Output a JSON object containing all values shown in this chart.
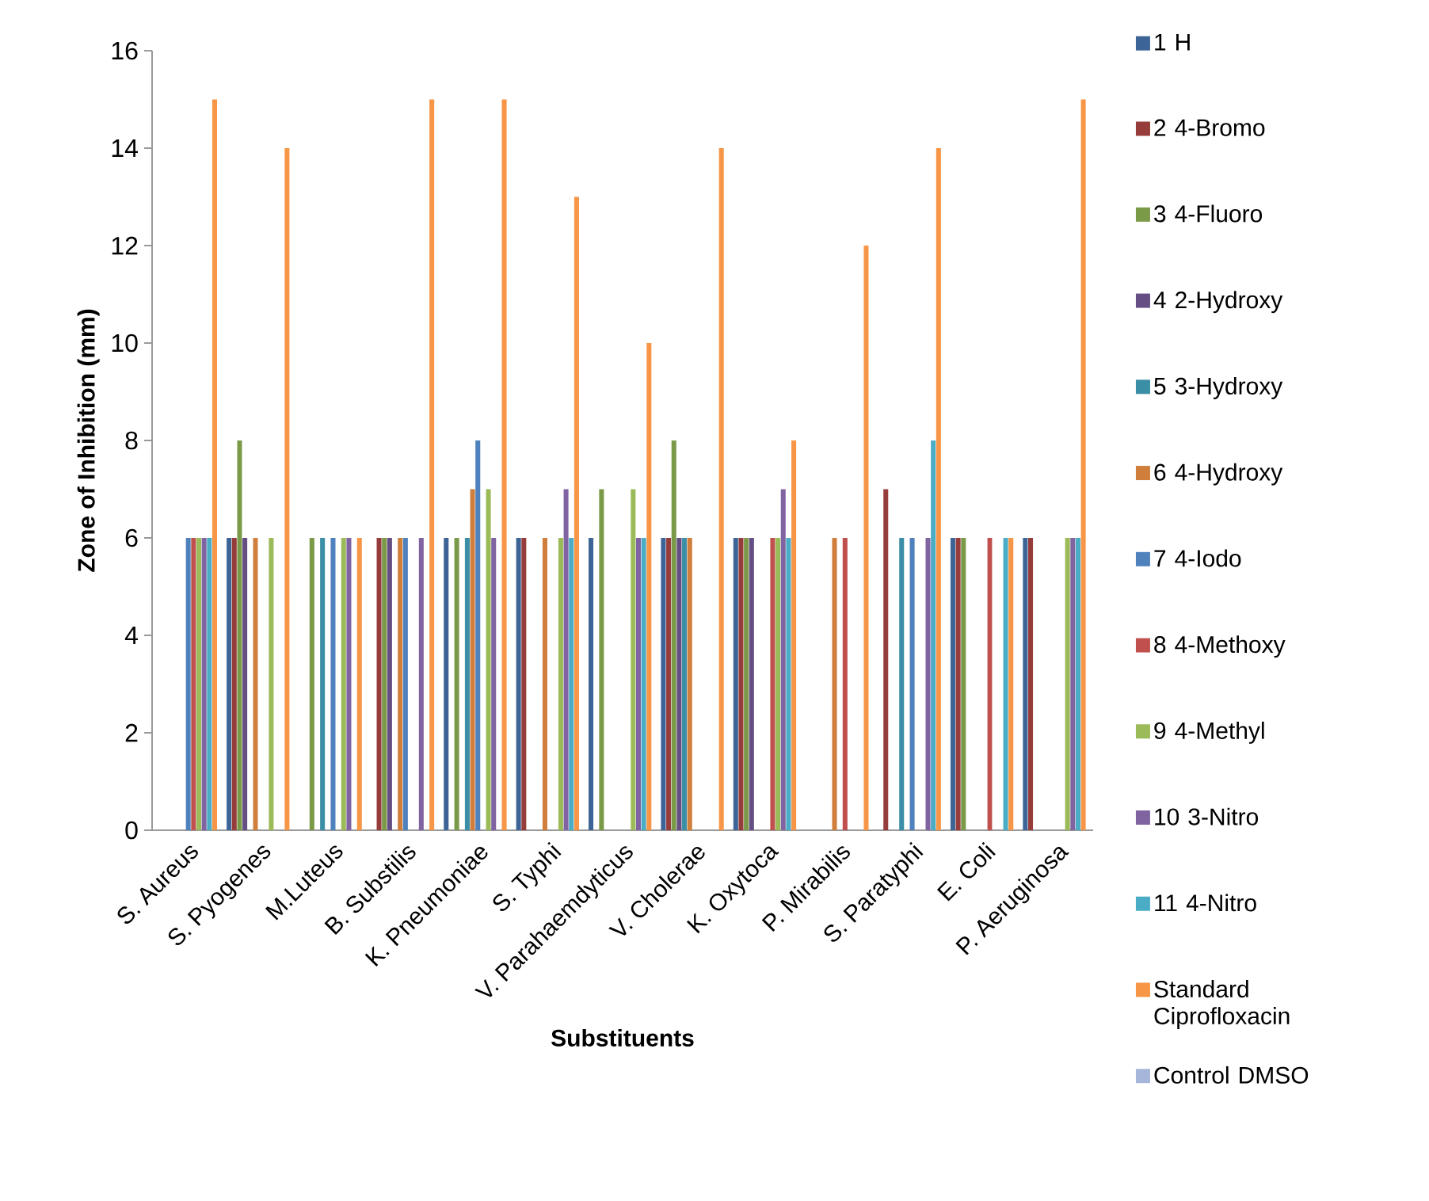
{
  "chart_data": {
    "type": "bar",
    "xlabel": "Substituents",
    "ylabel": "Zone of Inhibition (mm)",
    "categories": [
      "S. Aureus",
      "S. Pyogenes",
      "M.Luteus",
      "B. Substilis",
      "K. Pneumoniae",
      "S. Typhi",
      "V. Parahaemdyticus",
      "V. Cholerae",
      "K. Oxytoca",
      "P. Mirabilis",
      "S. Paratyphi",
      "E. Coli",
      "P. Aeruginosa"
    ],
    "ylim": [
      0,
      16
    ],
    "yticks": [
      0,
      2,
      4,
      6,
      8,
      10,
      12,
      14,
      16
    ],
    "grid": false,
    "legend": "right",
    "series": [
      {
        "name": "1 H",
        "color": "#3c6496",
        "values": [
          null,
          6,
          null,
          null,
          6,
          6,
          6,
          6,
          6,
          null,
          null,
          6,
          6
        ]
      },
      {
        "name": "2 4-Bromo",
        "color": "#963c3a",
        "values": [
          null,
          6,
          null,
          6,
          null,
          6,
          null,
          6,
          6,
          null,
          7,
          6,
          6
        ]
      },
      {
        "name": "3 4-Fluoro",
        "color": "#7a9a48",
        "values": [
          null,
          8,
          6,
          6,
          6,
          null,
          7,
          8,
          6,
          null,
          null,
          6,
          null
        ]
      },
      {
        "name": "4 2-Hydroxy",
        "color": "#654e84",
        "values": [
          null,
          6,
          null,
          6,
          null,
          null,
          null,
          6,
          6,
          null,
          null,
          null,
          null
        ]
      },
      {
        "name": "5 3-Hydroxy",
        "color": "#3a8ea5",
        "values": [
          null,
          null,
          6,
          null,
          6,
          null,
          null,
          6,
          null,
          null,
          6,
          null,
          null
        ]
      },
      {
        "name": "6 4-Hydroxy",
        "color": "#d07e3c",
        "values": [
          null,
          6,
          null,
          6,
          7,
          6,
          null,
          6,
          null,
          6,
          null,
          null,
          null
        ]
      },
      {
        "name": "7 4-Iodo",
        "color": "#4f81bd",
        "values": [
          6,
          null,
          6,
          6,
          8,
          null,
          null,
          null,
          null,
          null,
          6,
          null,
          null
        ]
      },
      {
        "name": "8 4-Methoxy",
        "color": "#c0504d",
        "values": [
          6,
          null,
          null,
          null,
          null,
          null,
          null,
          null,
          6,
          6,
          null,
          6,
          null
        ]
      },
      {
        "name": "9 4-Methyl",
        "color": "#9bbb59",
        "values": [
          6,
          6,
          6,
          null,
          7,
          6,
          7,
          null,
          6,
          null,
          null,
          null,
          6
        ]
      },
      {
        "name": "10 3-Nitro",
        "color": "#8064a2",
        "values": [
          6,
          null,
          6,
          6,
          6,
          7,
          6,
          null,
          7,
          null,
          6,
          null,
          6
        ]
      },
      {
        "name": "11 4-Nitro",
        "color": "#4bacc6",
        "values": [
          6,
          null,
          null,
          null,
          null,
          6,
          6,
          null,
          6,
          null,
          8,
          6,
          6
        ]
      },
      {
        "name": "Standard Ciprofloxacin",
        "color": "#f79646",
        "values": [
          15,
          14,
          6,
          15,
          15,
          13,
          10,
          14,
          8,
          12,
          14,
          6,
          15
        ]
      },
      {
        "name": "Control DMSO",
        "color": "#a5b6da",
        "values": [
          null,
          null,
          null,
          null,
          null,
          null,
          null,
          null,
          null,
          null,
          null,
          null,
          null
        ]
      }
    ]
  }
}
